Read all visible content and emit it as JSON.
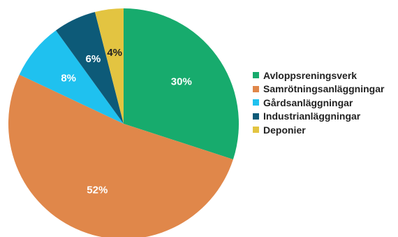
{
  "chart_data": {
    "type": "pie",
    "categories": [
      "Avloppsreningsverk",
      "Samrötningsanläggningar",
      "Gårdsanläggningar",
      "Industrianläggningar",
      "Deponier"
    ],
    "values": [
      30,
      52,
      8,
      6,
      4
    ],
    "labels": [
      "30%",
      "52%",
      "8%",
      "6%",
      "4%"
    ],
    "colors": [
      "#17ab6d",
      "#e0874a",
      "#1fc1ef",
      "#0d5a78",
      "#e3c441"
    ],
    "label_colors": [
      "#ffffff",
      "#ffffff",
      "#ffffff",
      "#ffffff",
      "#222222"
    ],
    "start_angle_deg": 0,
    "direction": "clockwise",
    "legend_position": "right"
  }
}
